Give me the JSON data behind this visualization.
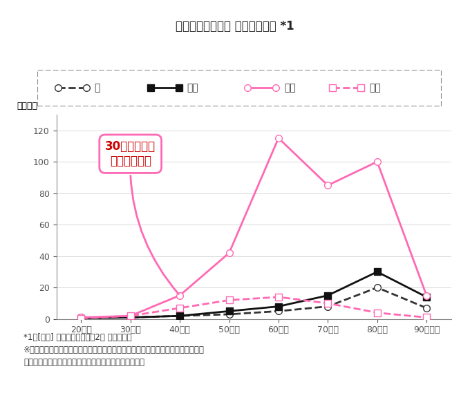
{
  "title": "女性の年齢階級別 がん総患者数 *1",
  "ylabel": "（千人）",
  "xlabels": [
    "20歳～",
    "30歳～",
    "40歳～",
    "50歳～",
    "60歳～",
    "70歳～",
    "80歳～",
    "90歳以上"
  ],
  "series": {
    "胃": [
      1,
      1,
      2,
      3,
      5,
      8,
      20,
      7
    ],
    "結腸": [
      0.5,
      1,
      2,
      5,
      8,
      15,
      30,
      14
    ],
    "乳房": [
      1,
      2,
      15,
      42,
      115,
      85,
      100,
      15
    ],
    "子宮": [
      0.5,
      2,
      7,
      12,
      14,
      10,
      4,
      1
    ]
  },
  "colors": {
    "胃": "#333333",
    "結腸": "#111111",
    "乳房": "#ff69b4",
    "子宮": "#ff69b4"
  },
  "linestyles": {
    "胃": "--",
    "結腸": "-",
    "乳房": "-",
    "子宮": "--"
  },
  "markers": {
    "胃": "o",
    "結腸": "s",
    "乳房": "o",
    "子宮": "s"
  },
  "markerfacecolors": {
    "胃": "white",
    "結腸": "#111111",
    "乳房": "white",
    "子宮": "white"
  },
  "ylim": [
    0,
    130
  ],
  "yticks": [
    0,
    20,
    40,
    60,
    80,
    100,
    120
  ],
  "legend_items": [
    "胃",
    "結腸",
    "乳房",
    "子宮"
  ],
  "bubble_text": "30代後半から\n乳がん急増！",
  "bubble_color": "#ff69b4",
  "bubble_text_color": "#cc0000",
  "footnote1": "*1　[出典] 厚生労働省「令和2年 患者調査」",
  "footnote2": "※総患者数は、調査日現在において、継続的に医療を受けている者（調査日には医",
  "footnote3": "療施設で受療していない者を含む）を推計したもの。",
  "background_color": "#ffffff"
}
